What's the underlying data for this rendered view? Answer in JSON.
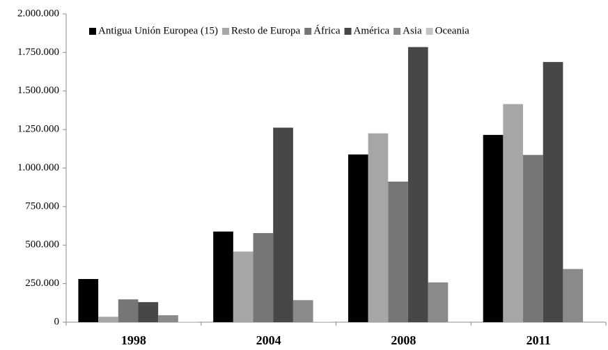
{
  "chart_data": {
    "type": "bar",
    "categories": [
      "1998",
      "2004",
      "2008",
      "2011"
    ],
    "series": [
      {
        "name": "Antigua Unión Europea (15)",
        "color": "#000000",
        "values": [
          280000,
          588000,
          1088000,
          1215000
        ]
      },
      {
        "name": "Resto de Europa",
        "color": "#a6a6a6",
        "values": [
          35000,
          458000,
          1225000,
          1415000
        ]
      },
      {
        "name": "África",
        "color": "#767676",
        "values": [
          148000,
          578000,
          912000,
          1085000
        ]
      },
      {
        "name": "América",
        "color": "#474747",
        "values": [
          130000,
          1262000,
          1785000,
          1688000
        ]
      },
      {
        "name": "Asia",
        "color": "#8a8a8a",
        "values": [
          45000,
          143000,
          258000,
          345000
        ]
      },
      {
        "name": "Oceania",
        "color": "#c4c4c4",
        "values": [
          2000,
          3000,
          4000,
          5000
        ]
      }
    ],
    "ylim": [
      0,
      2000000
    ],
    "yticks": [
      {
        "value": 0,
        "label": "0"
      },
      {
        "value": 250000,
        "label": "250.000"
      },
      {
        "value": 500000,
        "label": "500.000"
      },
      {
        "value": 750000,
        "label": "750.000"
      },
      {
        "value": 1000000,
        "label": "1.000.000"
      },
      {
        "value": 1250000,
        "label": "1.250.000"
      },
      {
        "value": 1500000,
        "label": "1.500.000"
      },
      {
        "value": 1750000,
        "label": "1.750.000"
      },
      {
        "value": 2000000,
        "label": "2.000.000"
      }
    ],
    "legend": "top"
  }
}
